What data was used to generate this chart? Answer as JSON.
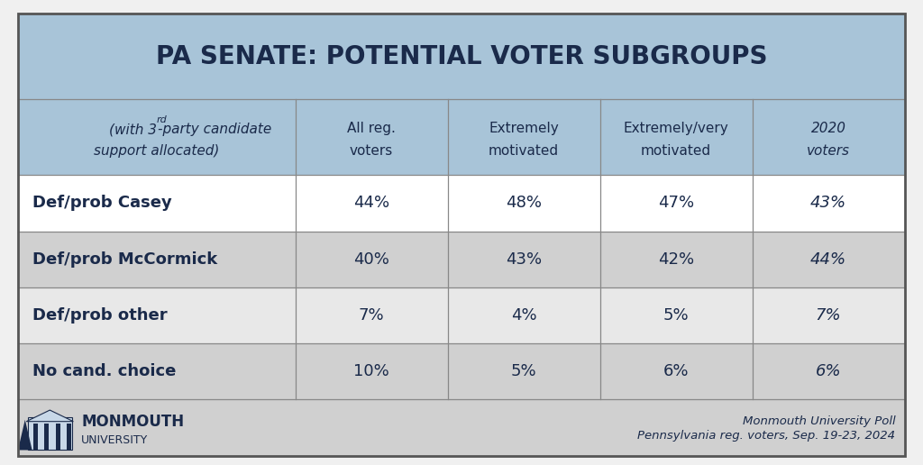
{
  "title": "PA SENATE: POTENTIAL VOTER SUBGROUPS",
  "col_headers": [
    [
      "All reg.",
      "voters"
    ],
    [
      "Extremely",
      "motivated"
    ],
    [
      "Extremely/very",
      "motivated"
    ],
    [
      "2020",
      "voters"
    ]
  ],
  "row_labels": [
    "Def/prob Casey",
    "Def/prob McCormick",
    "Def/prob other",
    "No cand. choice"
  ],
  "data": [
    [
      "44%",
      "48%",
      "47%",
      "43%"
    ],
    [
      "40%",
      "43%",
      "42%",
      "44%"
    ],
    [
      "7%",
      "4%",
      "5%",
      "7%"
    ],
    [
      "10%",
      "5%",
      "6%",
      "6%"
    ]
  ],
  "header_bg": "#a8c4d8",
  "row_colors": [
    "#ffffff",
    "#d0d0d0",
    "#e8e8e8",
    "#d0d0d0"
  ],
  "footer_bg": "#d0d0d0",
  "title_color": "#1a2a4a",
  "border_color": "#555555",
  "text_color": "#1a2a4a",
  "footer_right_line1": "Monmouth University Poll",
  "footer_right_line2": "Pennsylvania reg. voters, Sep. 19-23, 2024",
  "outer_bg": "#f0f0f0"
}
